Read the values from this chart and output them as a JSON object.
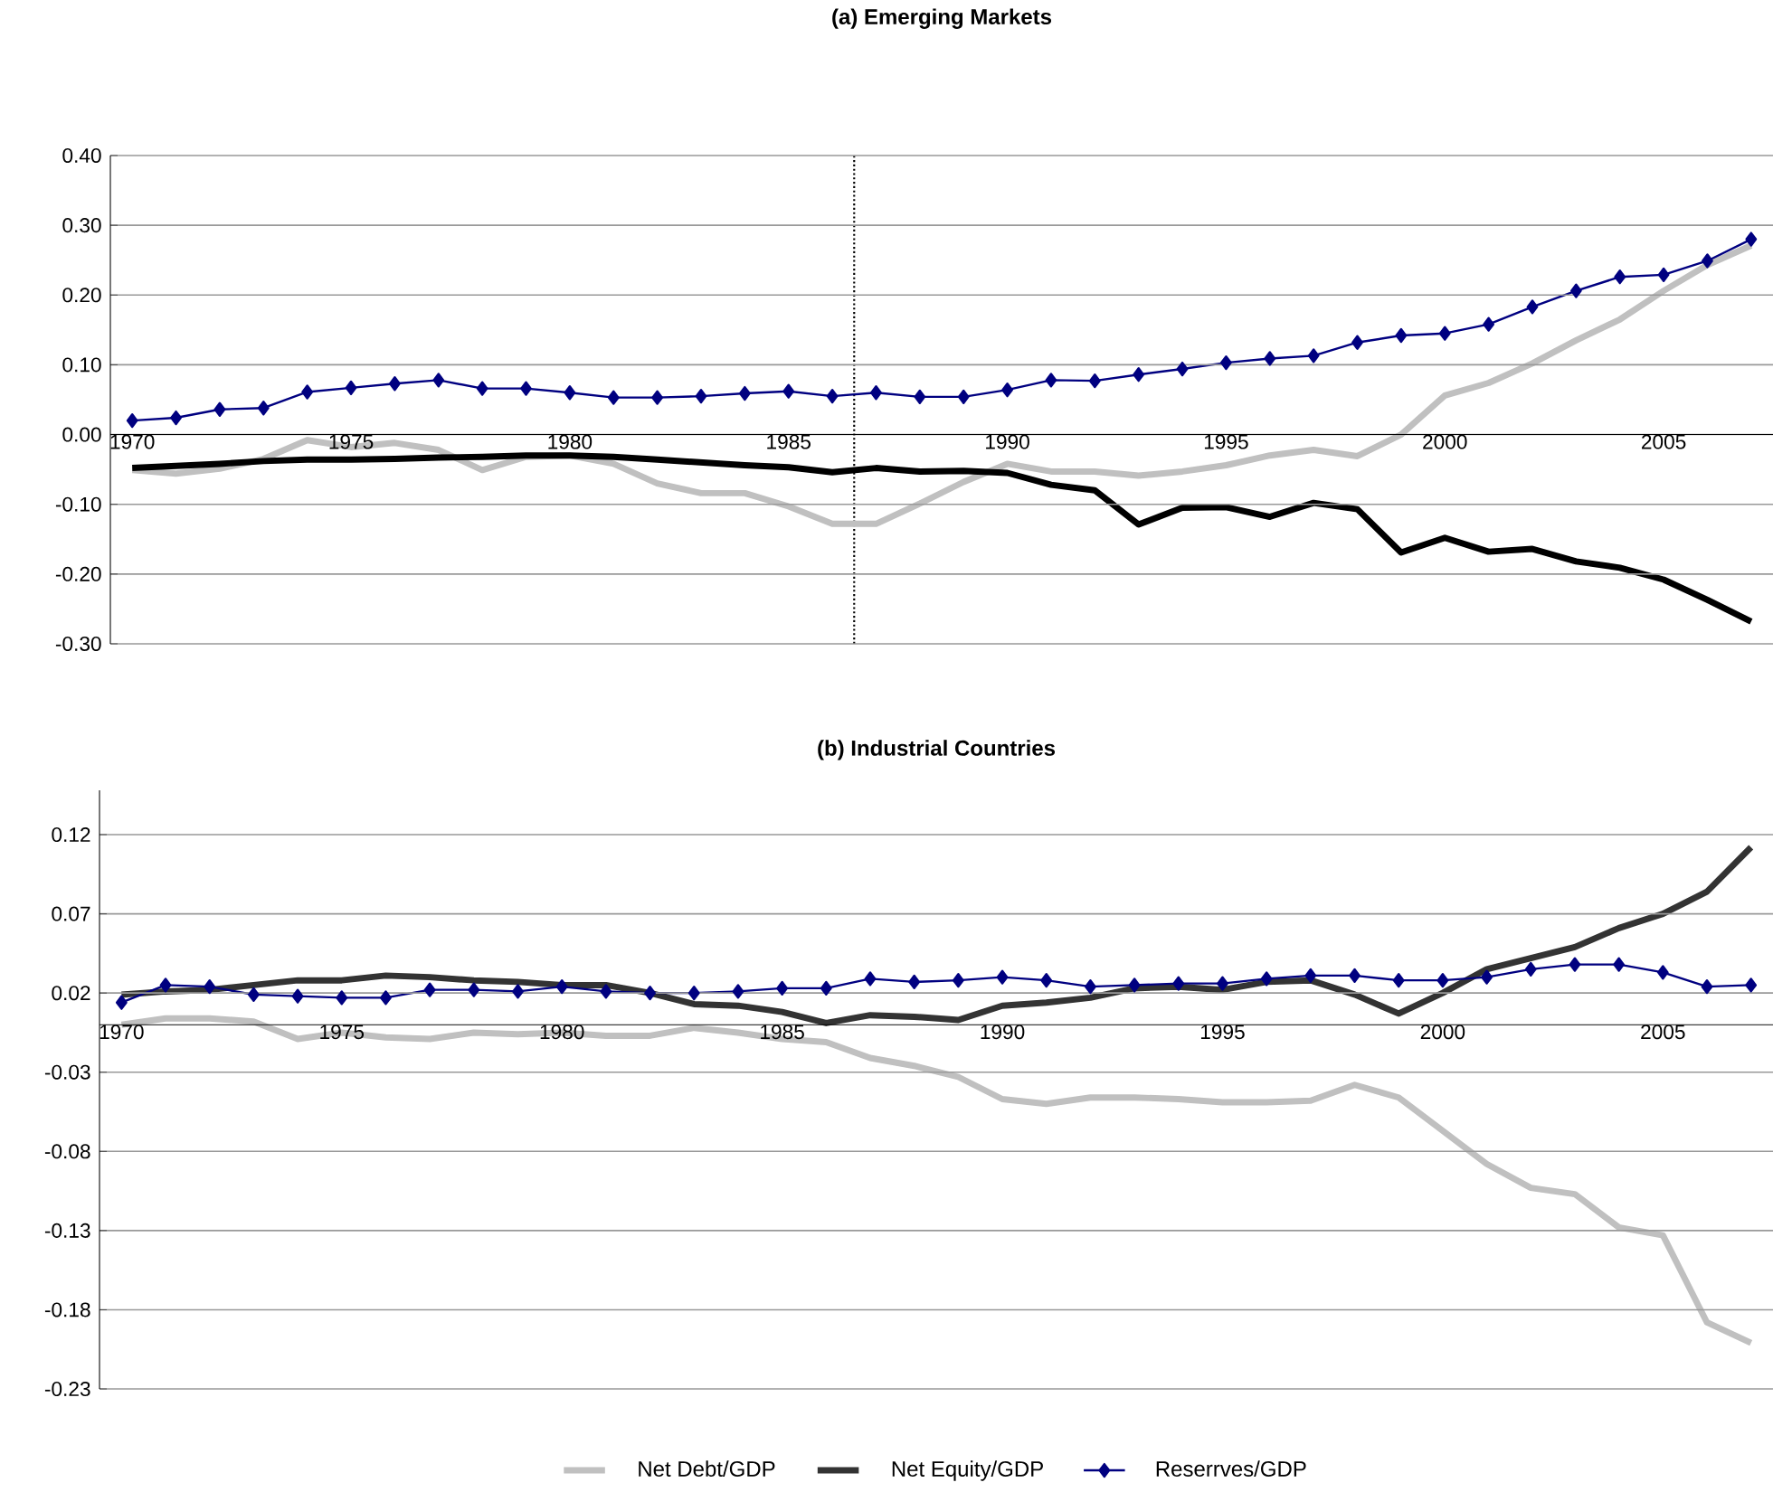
{
  "chart_data": [
    {
      "type": "line",
      "title": "(a) Emerging Markets",
      "x": [
        1970,
        1971,
        1972,
        1973,
        1974,
        1975,
        1976,
        1977,
        1978,
        1979,
        1980,
        1981,
        1982,
        1983,
        1984,
        1985,
        1986,
        1987,
        1988,
        1989,
        1990,
        1991,
        1992,
        1993,
        1994,
        1995,
        1996,
        1997,
        1998,
        1999,
        2000,
        2001,
        2002,
        2003,
        2004,
        2005,
        2006,
        2007
      ],
      "series": [
        {
          "color": "#c0c0c0",
          "marker": "none",
          "values": [
            -0.051,
            -0.056,
            -0.049,
            -0.035,
            -0.008,
            -0.018,
            -0.012,
            -0.022,
            -0.051,
            -0.032,
            -0.03,
            -0.042,
            -0.07,
            -0.084,
            -0.084,
            -0.103,
            -0.128,
            -0.128,
            -0.099,
            -0.068,
            -0.042,
            -0.053,
            -0.053,
            -0.059,
            -0.053,
            -0.044,
            -0.03,
            -0.022,
            -0.031,
            0.0,
            0.056,
            0.074,
            0.102,
            0.135,
            0.165,
            0.206,
            0.243,
            0.271
          ]
        },
        {
          "color": "#000000",
          "marker": "none",
          "values": [
            -0.048,
            -0.045,
            -0.042,
            -0.038,
            -0.036,
            -0.036,
            -0.035,
            -0.033,
            -0.032,
            -0.03,
            -0.03,
            -0.032,
            -0.036,
            -0.04,
            -0.044,
            -0.047,
            -0.054,
            -0.048,
            -0.053,
            -0.052,
            -0.055,
            -0.072,
            -0.08,
            -0.129,
            -0.105,
            -0.104,
            -0.118,
            -0.098,
            -0.107,
            -0.169,
            -0.148,
            -0.168,
            -0.164,
            -0.182,
            -0.191,
            -0.208,
            -0.237,
            -0.268
          ]
        },
        {
          "color": "#000080",
          "marker": "diamond",
          "values": [
            0.02,
            0.024,
            0.036,
            0.038,
            0.061,
            0.067,
            0.073,
            0.078,
            0.066,
            0.066,
            0.06,
            0.053,
            0.053,
            0.055,
            0.059,
            0.062,
            0.055,
            0.06,
            0.054,
            0.054,
            0.064,
            0.078,
            0.077,
            0.086,
            0.094,
            0.103,
            0.109,
            0.113,
            0.132,
            0.142,
            0.145,
            0.158,
            0.183,
            0.206,
            0.226,
            0.229,
            0.249,
            0.28
          ]
        }
      ],
      "xlim": [
        1969.5,
        2007.5
      ],
      "xticks": [
        1970,
        1975,
        1980,
        1985,
        1990,
        1995,
        2000,
        2005
      ],
      "ylim": [
        -0.3,
        0.4
      ],
      "yticks": [
        {
          "value": -0.3,
          "label": "-0.30"
        },
        {
          "value": -0.2,
          "label": "-0.20"
        },
        {
          "value": -0.1,
          "label": "-0.10"
        },
        {
          "value": 0,
          "label": "0.00"
        },
        {
          "value": 0.1,
          "label": "0.10"
        },
        {
          "value": 0.2,
          "label": "0.20"
        },
        {
          "value": 0.3,
          "label": "0.30"
        },
        {
          "value": 0.4,
          "label": "0.40"
        }
      ],
      "ref_lines": [
        {
          "axis": "x",
          "value": 1986.5,
          "color": "#000000",
          "line_style": "dotted"
        }
      ],
      "grid": "y",
      "legend": false
    },
    {
      "type": "line",
      "title": "(b) Industrial Countries",
      "x": [
        1970,
        1971,
        1972,
        1973,
        1974,
        1975,
        1976,
        1977,
        1978,
        1979,
        1980,
        1981,
        1982,
        1983,
        1984,
        1985,
        1986,
        1987,
        1988,
        1989,
        1990,
        1991,
        1992,
        1993,
        1994,
        1995,
        1996,
        1997,
        1998,
        1999,
        2000,
        2001,
        2002,
        2003,
        2004,
        2005,
        2006,
        2007
      ],
      "series": [
        {
          "name": "Net Debt/GDP",
          "color": "#c0c0c0",
          "marker": "none",
          "values": [
            0.0,
            0.004,
            0.004,
            0.002,
            -0.009,
            -0.005,
            -0.008,
            -0.009,
            -0.005,
            -0.006,
            -0.005,
            -0.007,
            -0.007,
            -0.002,
            -0.005,
            -0.009,
            -0.011,
            -0.021,
            -0.026,
            -0.033,
            -0.047,
            -0.05,
            -0.046,
            -0.046,
            -0.047,
            -0.049,
            -0.049,
            -0.048,
            -0.038,
            -0.046,
            -0.067,
            -0.088,
            -0.103,
            -0.107,
            -0.128,
            -0.133,
            -0.188,
            -0.201
          ]
        },
        {
          "name": "Net Equity/GDP",
          "color": "#333333",
          "marker": "none",
          "values": [
            0.019,
            0.021,
            0.022,
            0.025,
            0.028,
            0.028,
            0.031,
            0.03,
            0.028,
            0.027,
            0.025,
            0.025,
            0.02,
            0.013,
            0.012,
            0.008,
            0.001,
            0.006,
            0.005,
            0.003,
            0.012,
            0.014,
            0.017,
            0.023,
            0.024,
            0.022,
            0.027,
            0.028,
            0.019,
            0.007,
            0.02,
            0.035,
            0.042,
            0.049,
            0.061,
            0.07,
            0.084,
            0.112
          ]
        },
        {
          "name": "Reserrves/GDP",
          "color": "#000080",
          "marker": "diamond",
          "values": [
            0.014,
            0.025,
            0.024,
            0.019,
            0.018,
            0.017,
            0.017,
            0.022,
            0.022,
            0.021,
            0.024,
            0.021,
            0.02,
            0.02,
            0.021,
            0.023,
            0.023,
            0.029,
            0.027,
            0.028,
            0.03,
            0.028,
            0.024,
            0.025,
            0.026,
            0.026,
            0.029,
            0.031,
            0.031,
            0.028,
            0.028,
            0.03,
            0.035,
            0.038,
            0.038,
            0.033,
            0.024,
            0.025
          ]
        }
      ],
      "xlim": [
        1969.5,
        2007.5
      ],
      "xticks": [
        1970,
        1975,
        1980,
        1985,
        1990,
        1995,
        2000,
        2005
      ],
      "ylim": [
        -0.23,
        0.148
      ],
      "yticks": [
        -0.23,
        -0.18,
        -0.13,
        -0.08,
        -0.03,
        0.02,
        0.07,
        0.12
      ],
      "grid": "y",
      "legend": "bottom"
    }
  ]
}
